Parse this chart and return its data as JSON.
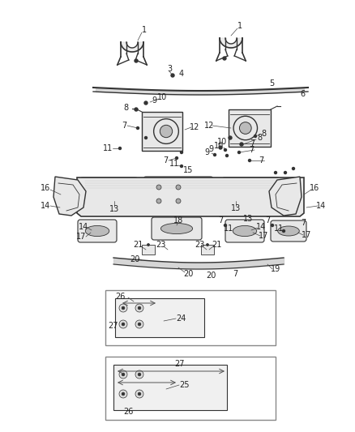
{
  "bg_color": "#ffffff",
  "line_color": "#555555",
  "dark_color": "#333333",
  "text_color": "#222222",
  "figsize": [
    4.38,
    5.33
  ],
  "dpi": 100,
  "part_fill": "#e8e8e8",
  "part_dark": "#bbbbbb"
}
